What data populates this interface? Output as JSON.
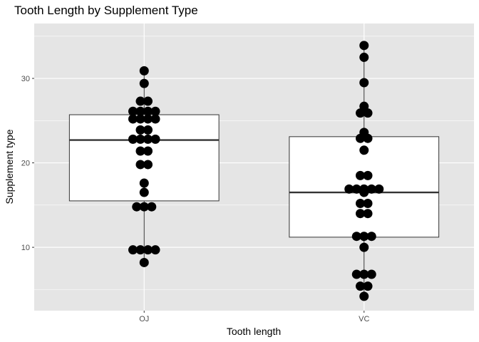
{
  "chart_data": {
    "type": "boxplot-dotplot",
    "title": "Tooth Length by Supplement Type",
    "xlabel": "Tooth length",
    "ylabel": "Supplement type",
    "categories": [
      "OJ",
      "VC"
    ],
    "ylim": [
      2.5,
      36.5
    ],
    "yticks": [
      10,
      20,
      30
    ],
    "grid": true,
    "background": "#e5e5e5",
    "gridline_color": "#ffffff",
    "dot_color": "#000000",
    "box_fill": "#ffffff",
    "box_stroke": "#333333",
    "boxes": [
      {
        "category": "OJ",
        "min": 8.2,
        "q1": 15.5,
        "median": 22.7,
        "q3": 25.7,
        "max": 30.9
      },
      {
        "category": "VC",
        "min": 4.2,
        "q1": 11.2,
        "median": 16.5,
        "q3": 23.1,
        "max": 33.9
      }
    ],
    "points": [
      {
        "category": "OJ",
        "values": [
          8.2,
          9.7,
          9.7,
          9.7,
          9.7,
          14.8,
          14.8,
          14.8,
          16.5,
          17.6,
          19.8,
          19.8,
          21.4,
          21.4,
          22.8,
          22.8,
          22.8,
          22.8,
          23.9,
          23.9,
          25.2,
          25.2,
          25.2,
          25.2,
          26.1,
          26.1,
          26.1,
          26.1,
          27.3,
          27.3,
          29.4,
          30.9
        ]
      },
      {
        "category": "VC",
        "values": [
          4.2,
          5.4,
          5.4,
          6.8,
          6.8,
          6.8,
          10.0,
          11.3,
          11.3,
          11.3,
          14.0,
          14.0,
          15.2,
          15.2,
          16.5,
          16.9,
          16.9,
          16.9,
          16.9,
          16.9,
          18.5,
          18.5,
          21.5,
          22.9,
          22.9,
          23.6,
          25.9,
          25.9,
          26.7,
          29.5,
          32.5,
          33.9
        ]
      }
    ]
  }
}
